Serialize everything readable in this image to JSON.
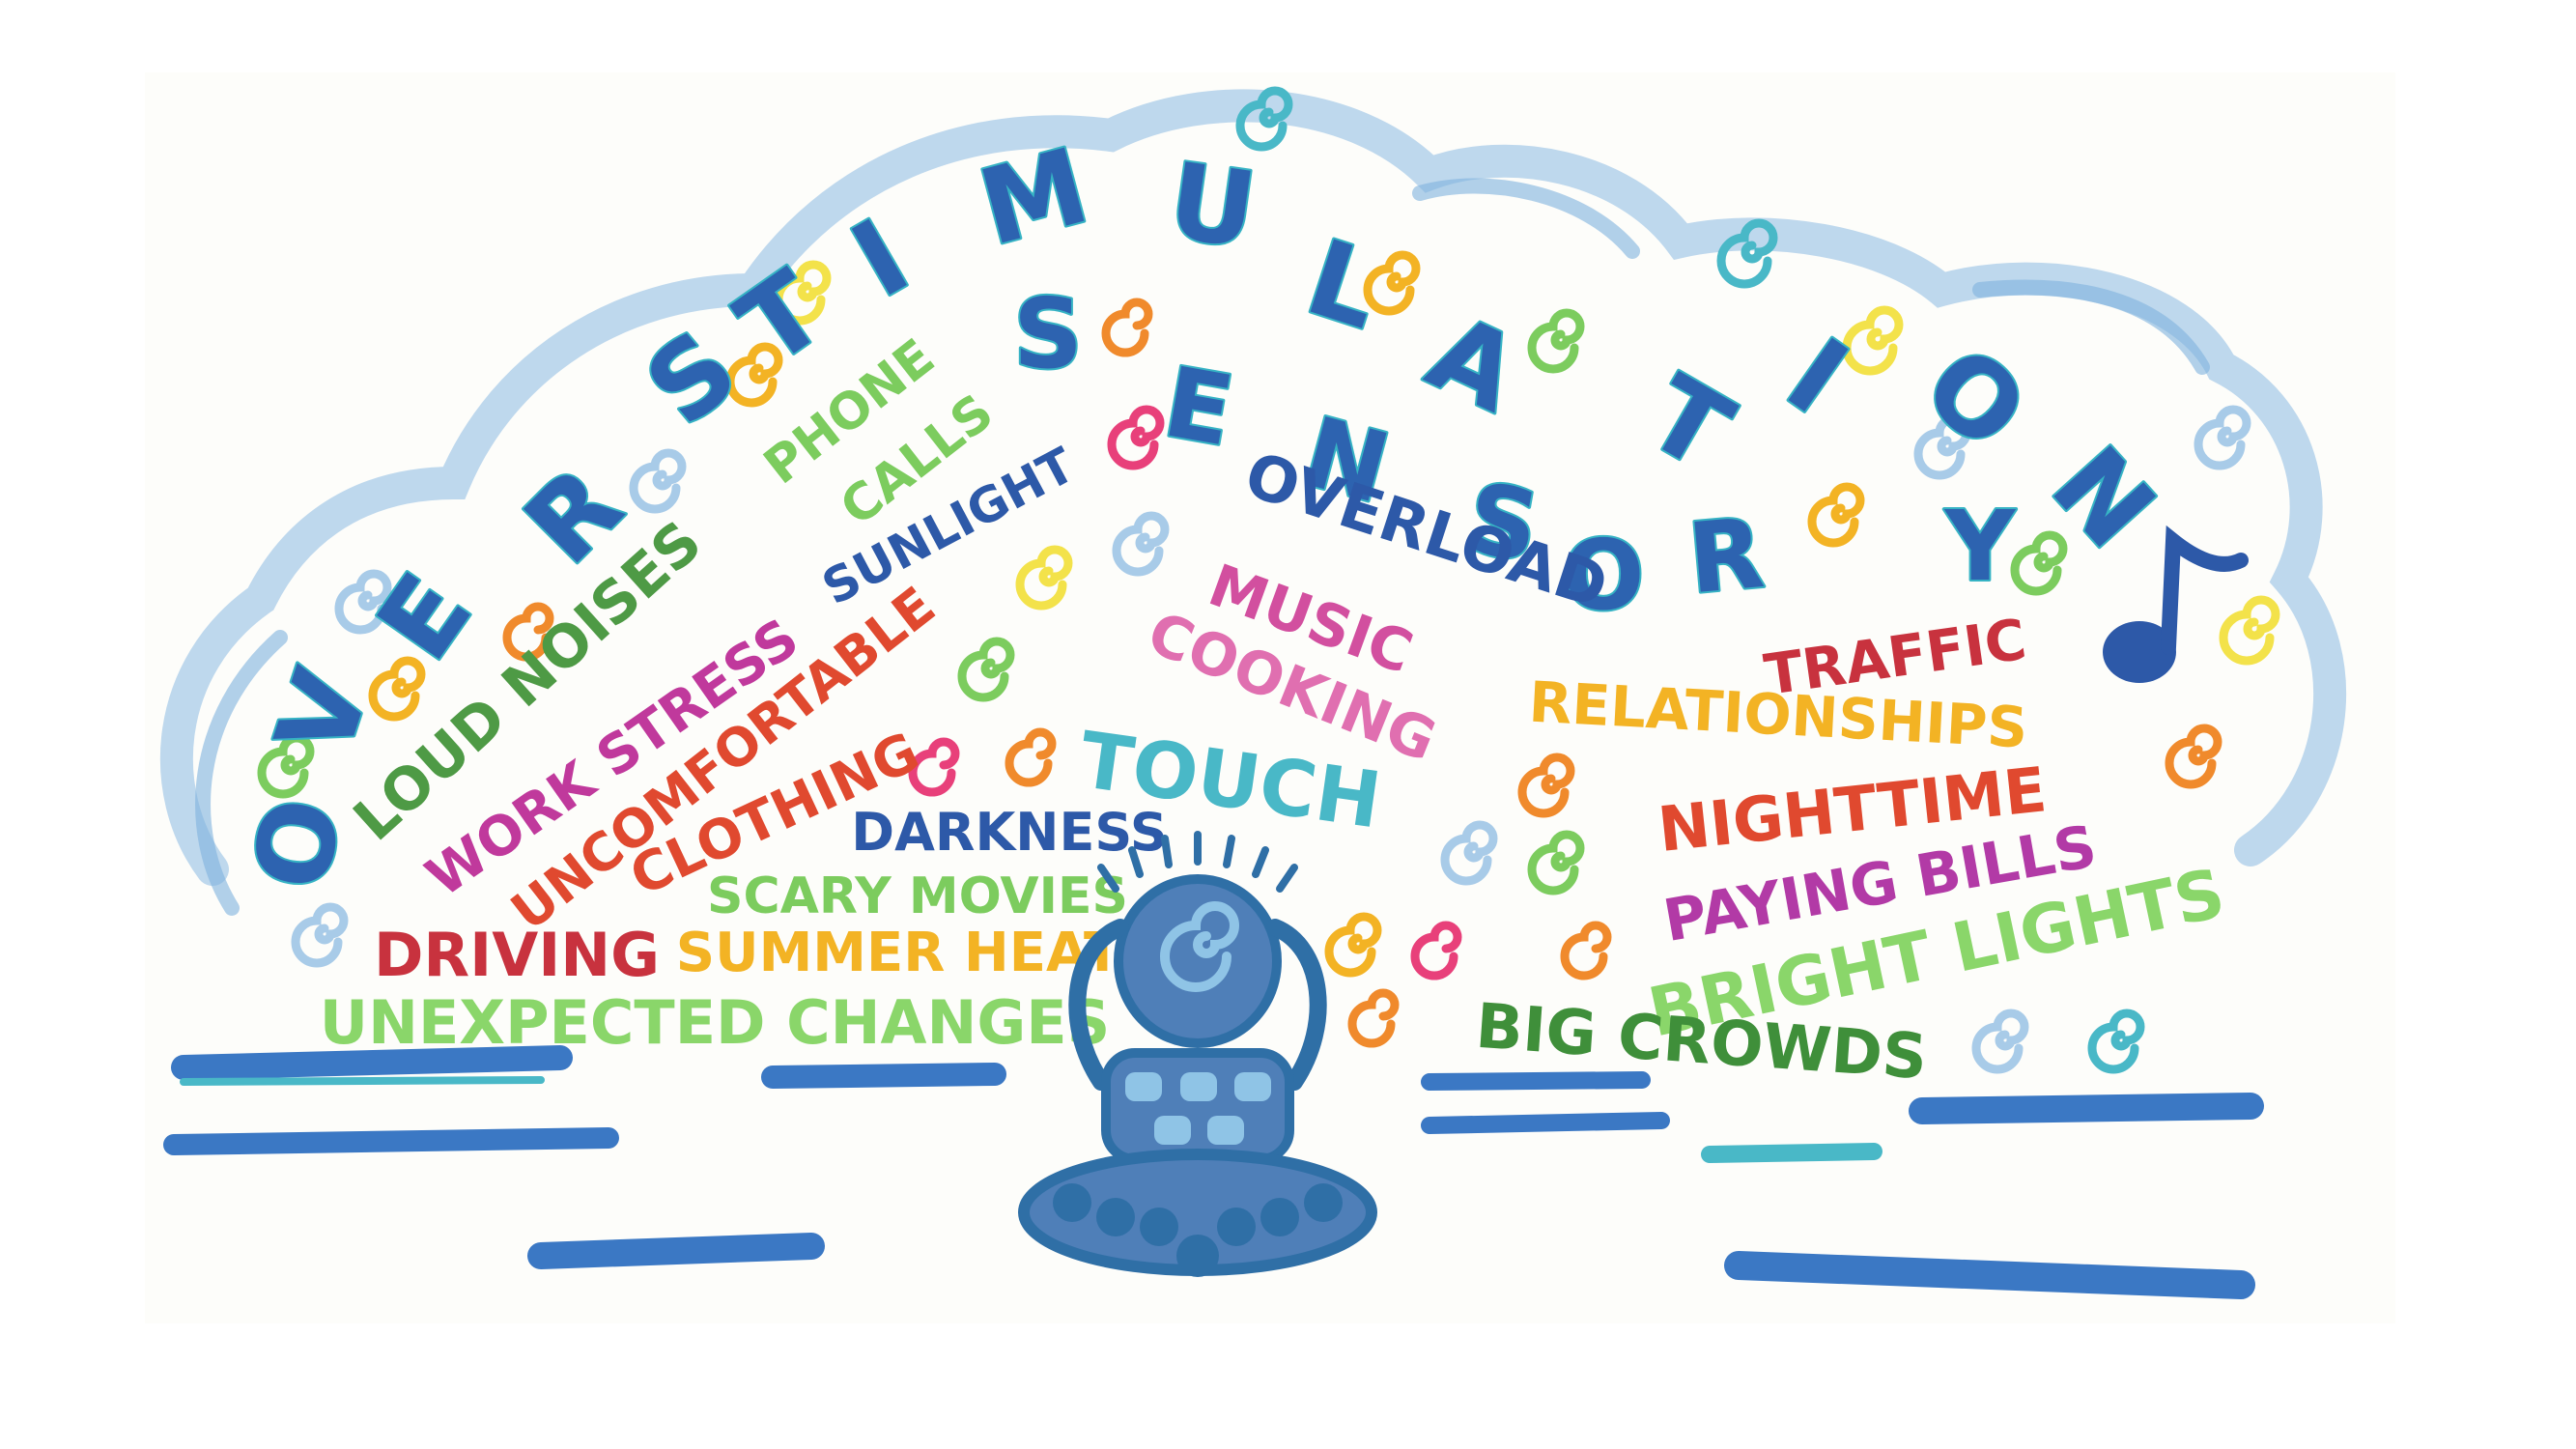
{
  "title": {
    "overstimulation": [
      "O",
      "V",
      "E",
      "R",
      "S",
      "T",
      "I",
      "M",
      "U",
      "L",
      "A",
      "T",
      "I",
      "O",
      "N"
    ],
    "sensory": [
      "S",
      "E",
      "N",
      "S",
      "O",
      "R",
      "Y"
    ],
    "overload": "OVERLOAD"
  },
  "triggers": [
    {
      "text": "LOUD NOISES",
      "color": "#4e9a45"
    },
    {
      "text": "PHONE",
      "color": "#7ccc5e"
    },
    {
      "text": "CALLS",
      "color": "#7ccc5e"
    },
    {
      "text": "WORK STRESS",
      "color": "#c0399c"
    },
    {
      "text": "SUNLIGHT",
      "color": "#2d59a8"
    },
    {
      "text": "UNCOMFORTABLE",
      "color": "#e0492f"
    },
    {
      "text": "CLOTHING",
      "color": "#e0492f"
    },
    {
      "text": "MUSIC",
      "color": "#d24f9f"
    },
    {
      "text": "COOKING",
      "color": "#e06fb0"
    },
    {
      "text": "TRAFFIC",
      "color": "#c8323e"
    },
    {
      "text": "TOUCH",
      "color": "#49b8c7"
    },
    {
      "text": "RELATIONSHIPS",
      "color": "#f3b324"
    },
    {
      "text": "DARKNESS",
      "color": "#2d59a8"
    },
    {
      "text": "NIGHTTIME",
      "color": "#e0492f"
    },
    {
      "text": "SCARY MOVIES",
      "color": "#7ccc5e"
    },
    {
      "text": "PAYING BILLS",
      "color": "#b23aa6"
    },
    {
      "text": "DRIVING",
      "color": "#c8323e"
    },
    {
      "text": "SUMMER HEAT",
      "color": "#f3b324"
    },
    {
      "text": "BRIGHT LIGHTS",
      "color": "#8ad66a"
    },
    {
      "text": "UNEXPECTED CHANGES",
      "color": "#8ad66a"
    },
    {
      "text": "BIG CROWDS",
      "color": "#3f8f3a"
    }
  ],
  "colors": {
    "title_blue": "#2d63b0",
    "title_teal": "#36b3c4",
    "cloud_blue": "#a8cbe8",
    "water_blue": "#3b78c4",
    "figure_blue": "#2f6fa6"
  },
  "icons": [
    "spiral-icon",
    "music-note-icon",
    "meditating-figure"
  ]
}
